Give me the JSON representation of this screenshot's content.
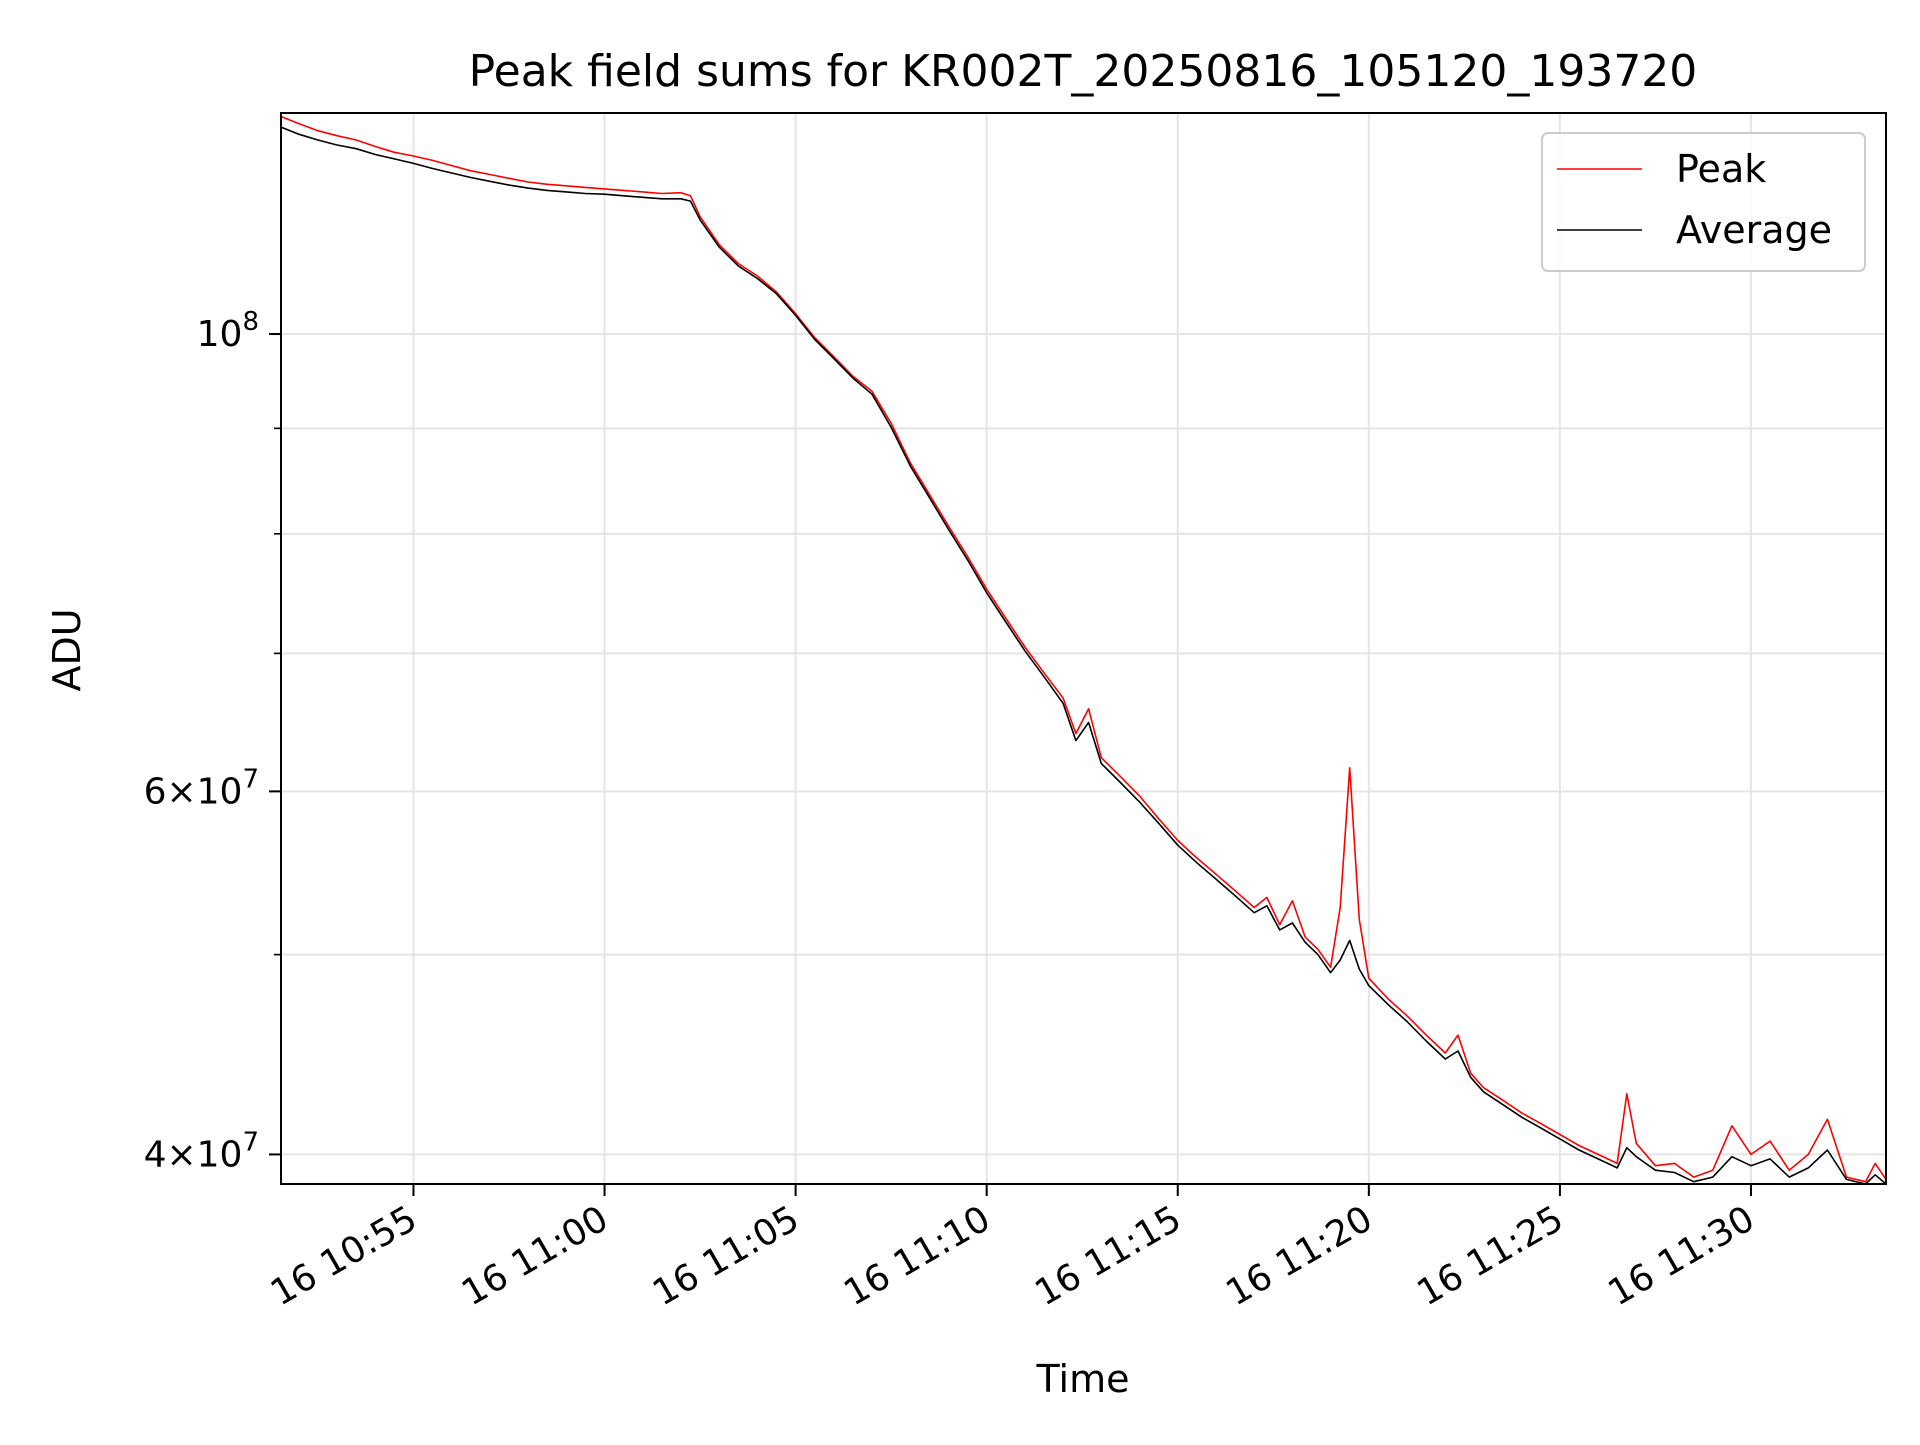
{
  "chart_data": {
    "type": "line",
    "title": "Peak field sums for KR002T_20250816_105120_193720",
    "xlabel": "Time",
    "ylabel": "ADU",
    "y_scale": "log",
    "ylim": [
      38700000,
      128000000
    ],
    "xlim": [
      "2025-08-16 10:51:32",
      "2025-08-16 11:33:32"
    ],
    "x_ticks": [
      {
        "time": "2025-08-16 10:55:00",
        "label": "16 10:55"
      },
      {
        "time": "2025-08-16 11:00:00",
        "label": "16 11:00"
      },
      {
        "time": "2025-08-16 11:05:00",
        "label": "16 11:05"
      },
      {
        "time": "2025-08-16 11:10:00",
        "label": "16 11:10"
      },
      {
        "time": "2025-08-16 11:15:00",
        "label": "16 11:15"
      },
      {
        "time": "2025-08-16 11:20:00",
        "label": "16 11:20"
      },
      {
        "time": "2025-08-16 11:25:00",
        "label": "16 11:25"
      },
      {
        "time": "2025-08-16 11:30:00",
        "label": "16 11:30"
      }
    ],
    "y_ticks": [
      {
        "value": 40000000,
        "mantissa": "4",
        "base": "10",
        "exp": "7"
      },
      {
        "value": 60000000,
        "mantissa": "6",
        "base": "10",
        "exp": "7"
      },
      {
        "value": 100000000,
        "mantissa": "",
        "base": "10",
        "exp": "8"
      }
    ],
    "y_minor_ticks": [
      50000000,
      70000000,
      80000000,
      90000000
    ],
    "grid": true,
    "legend_position": "upper-right",
    "series": [
      {
        "name": "Peak",
        "color": "#ff0000",
        "points": [
          [
            "2025-08-16 10:51:32",
            127500000
          ],
          [
            "2025-08-16 10:52:00",
            126500000
          ],
          [
            "2025-08-16 10:52:30",
            125500000
          ],
          [
            "2025-08-16 10:53:00",
            124800000
          ],
          [
            "2025-08-16 10:53:30",
            124200000
          ],
          [
            "2025-08-16 10:54:00",
            123300000
          ],
          [
            "2025-08-16 10:54:30",
            122500000
          ],
          [
            "2025-08-16 10:55:00",
            122000000
          ],
          [
            "2025-08-16 10:55:30",
            121400000
          ],
          [
            "2025-08-16 10:56:00",
            120700000
          ],
          [
            "2025-08-16 10:56:30",
            120000000
          ],
          [
            "2025-08-16 10:57:00",
            119500000
          ],
          [
            "2025-08-16 10:57:30",
            119000000
          ],
          [
            "2025-08-16 10:58:00",
            118500000
          ],
          [
            "2025-08-16 10:58:30",
            118200000
          ],
          [
            "2025-08-16 10:59:00",
            118000000
          ],
          [
            "2025-08-16 10:59:30",
            117800000
          ],
          [
            "2025-08-16 11:00:00",
            117600000
          ],
          [
            "2025-08-16 11:00:30",
            117400000
          ],
          [
            "2025-08-16 11:01:00",
            117200000
          ],
          [
            "2025-08-16 11:01:30",
            117000000
          ],
          [
            "2025-08-16 11:02:00",
            117100000
          ],
          [
            "2025-08-16 11:02:15",
            116700000
          ],
          [
            "2025-08-16 11:02:30",
            114000000
          ],
          [
            "2025-08-16 11:03:00",
            110500000
          ],
          [
            "2025-08-16 11:03:30",
            108200000
          ],
          [
            "2025-08-16 11:04:00",
            106700000
          ],
          [
            "2025-08-16 11:04:30",
            104800000
          ],
          [
            "2025-08-16 11:05:00",
            102300000
          ],
          [
            "2025-08-16 11:05:30",
            99600000
          ],
          [
            "2025-08-16 11:06:00",
            97500000
          ],
          [
            "2025-08-16 11:06:30",
            95400000
          ],
          [
            "2025-08-16 11:07:00",
            93800000
          ],
          [
            "2025-08-16 11:07:30",
            90500000
          ],
          [
            "2025-08-16 11:08:00",
            86600000
          ],
          [
            "2025-08-16 11:08:30",
            83600000
          ],
          [
            "2025-08-16 11:09:00",
            80700000
          ],
          [
            "2025-08-16 11:09:30",
            78000000
          ],
          [
            "2025-08-16 11:10:00",
            75200000
          ],
          [
            "2025-08-16 11:10:30",
            72800000
          ],
          [
            "2025-08-16 11:11:00",
            70500000
          ],
          [
            "2025-08-16 11:11:30",
            68500000
          ],
          [
            "2025-08-16 11:12:00",
            66600000
          ],
          [
            "2025-08-16 11:12:20",
            64000000
          ],
          [
            "2025-08-16 11:12:40",
            65800000
          ],
          [
            "2025-08-16 11:13:00",
            62300000
          ],
          [
            "2025-08-16 11:13:30",
            61000000
          ],
          [
            "2025-08-16 11:14:00",
            59700000
          ],
          [
            "2025-08-16 11:14:30",
            58200000
          ],
          [
            "2025-08-16 11:15:00",
            56800000
          ],
          [
            "2025-08-16 11:15:30",
            55700000
          ],
          [
            "2025-08-16 11:16:00",
            54700000
          ],
          [
            "2025-08-16 11:16:30",
            53700000
          ],
          [
            "2025-08-16 11:17:00",
            52700000
          ],
          [
            "2025-08-16 11:17:20",
            53300000
          ],
          [
            "2025-08-16 11:17:40",
            51700000
          ],
          [
            "2025-08-16 11:18:00",
            53100000
          ],
          [
            "2025-08-16 11:18:20",
            51000000
          ],
          [
            "2025-08-16 11:18:40",
            50300000
          ],
          [
            "2025-08-16 11:19:00",
            49300000
          ],
          [
            "2025-08-16 11:19:15",
            52700000
          ],
          [
            "2025-08-16 11:19:30",
            61600000
          ],
          [
            "2025-08-16 11:19:45",
            52000000
          ],
          [
            "2025-08-16 11:20:00",
            48700000
          ],
          [
            "2025-08-16 11:20:30",
            47600000
          ],
          [
            "2025-08-16 11:21:00",
            46700000
          ],
          [
            "2025-08-16 11:21:30",
            45700000
          ],
          [
            "2025-08-16 11:22:00",
            44800000
          ],
          [
            "2025-08-16 11:22:20",
            45700000
          ],
          [
            "2025-08-16 11:22:40",
            43800000
          ],
          [
            "2025-08-16 11:23:00",
            43100000
          ],
          [
            "2025-08-16 11:23:30",
            42500000
          ],
          [
            "2025-08-16 11:24:00",
            41900000
          ],
          [
            "2025-08-16 11:24:30",
            41400000
          ],
          [
            "2025-08-16 11:25:00",
            40900000
          ],
          [
            "2025-08-16 11:25:30",
            40400000
          ],
          [
            "2025-08-16 11:26:00",
            40000000
          ],
          [
            "2025-08-16 11:26:30",
            39600000
          ],
          [
            "2025-08-16 11:26:45",
            42800000
          ],
          [
            "2025-08-16 11:27:00",
            40500000
          ],
          [
            "2025-08-16 11:27:30",
            39500000
          ],
          [
            "2025-08-16 11:28:00",
            39600000
          ],
          [
            "2025-08-16 11:28:30",
            39000000
          ],
          [
            "2025-08-16 11:29:00",
            39300000
          ],
          [
            "2025-08-16 11:29:30",
            41300000
          ],
          [
            "2025-08-16 11:30:00",
            40000000
          ],
          [
            "2025-08-16 11:30:30",
            40600000
          ],
          [
            "2025-08-16 11:31:00",
            39300000
          ],
          [
            "2025-08-16 11:31:30",
            40000000
          ],
          [
            "2025-08-16 11:32:00",
            41600000
          ],
          [
            "2025-08-16 11:32:30",
            39000000
          ],
          [
            "2025-08-16 11:33:00",
            38800000
          ],
          [
            "2025-08-16 11:33:15",
            39600000
          ],
          [
            "2025-08-16 11:33:32",
            38900000
          ]
        ]
      },
      {
        "name": "Average",
        "color": "#000000",
        "points": [
          [
            "2025-08-16 10:51:32",
            126000000
          ],
          [
            "2025-08-16 10:52:00",
            125000000
          ],
          [
            "2025-08-16 10:52:30",
            124200000
          ],
          [
            "2025-08-16 10:53:00",
            123500000
          ],
          [
            "2025-08-16 10:53:30",
            123000000
          ],
          [
            "2025-08-16 10:54:00",
            122200000
          ],
          [
            "2025-08-16 10:54:30",
            121600000
          ],
          [
            "2025-08-16 10:55:00",
            121000000
          ],
          [
            "2025-08-16 10:55:30",
            120300000
          ],
          [
            "2025-08-16 10:56:00",
            119700000
          ],
          [
            "2025-08-16 10:56:30",
            119100000
          ],
          [
            "2025-08-16 10:57:00",
            118600000
          ],
          [
            "2025-08-16 10:57:30",
            118100000
          ],
          [
            "2025-08-16 10:58:00",
            117700000
          ],
          [
            "2025-08-16 10:58:30",
            117400000
          ],
          [
            "2025-08-16 10:59:00",
            117200000
          ],
          [
            "2025-08-16 10:59:30",
            117000000
          ],
          [
            "2025-08-16 11:00:00",
            116900000
          ],
          [
            "2025-08-16 11:00:30",
            116700000
          ],
          [
            "2025-08-16 11:01:00",
            116500000
          ],
          [
            "2025-08-16 11:01:30",
            116300000
          ],
          [
            "2025-08-16 11:02:00",
            116300000
          ],
          [
            "2025-08-16 11:02:15",
            116000000
          ],
          [
            "2025-08-16 11:02:30",
            113600000
          ],
          [
            "2025-08-16 11:03:00",
            110200000
          ],
          [
            "2025-08-16 11:03:30",
            107900000
          ],
          [
            "2025-08-16 11:04:00",
            106400000
          ],
          [
            "2025-08-16 11:04:30",
            104600000
          ],
          [
            "2025-08-16 11:05:00",
            102100000
          ],
          [
            "2025-08-16 11:05:30",
            99400000
          ],
          [
            "2025-08-16 11:06:00",
            97300000
          ],
          [
            "2025-08-16 11:06:30",
            95200000
          ],
          [
            "2025-08-16 11:07:00",
            93500000
          ],
          [
            "2025-08-16 11:07:30",
            90100000
          ],
          [
            "2025-08-16 11:08:00",
            86300000
          ],
          [
            "2025-08-16 11:08:30",
            83300000
          ],
          [
            "2025-08-16 11:09:00",
            80400000
          ],
          [
            "2025-08-16 11:09:30",
            77700000
          ],
          [
            "2025-08-16 11:10:00",
            74900000
          ],
          [
            "2025-08-16 11:10:30",
            72500000
          ],
          [
            "2025-08-16 11:11:00",
            70200000
          ],
          [
            "2025-08-16 11:11:30",
            68200000
          ],
          [
            "2025-08-16 11:12:00",
            66200000
          ],
          [
            "2025-08-16 11:12:20",
            63500000
          ],
          [
            "2025-08-16 11:12:40",
            64800000
          ],
          [
            "2025-08-16 11:13:00",
            61900000
          ],
          [
            "2025-08-16 11:13:30",
            60600000
          ],
          [
            "2025-08-16 11:14:00",
            59300000
          ],
          [
            "2025-08-16 11:14:30",
            57900000
          ],
          [
            "2025-08-16 11:15:00",
            56500000
          ],
          [
            "2025-08-16 11:15:30",
            55400000
          ],
          [
            "2025-08-16 11:16:00",
            54400000
          ],
          [
            "2025-08-16 11:16:30",
            53400000
          ],
          [
            "2025-08-16 11:17:00",
            52400000
          ],
          [
            "2025-08-16 11:17:20",
            52800000
          ],
          [
            "2025-08-16 11:17:40",
            51400000
          ],
          [
            "2025-08-16 11:18:00",
            51800000
          ],
          [
            "2025-08-16 11:18:20",
            50700000
          ],
          [
            "2025-08-16 11:18:40",
            50000000
          ],
          [
            "2025-08-16 11:19:00",
            49000000
          ],
          [
            "2025-08-16 11:19:15",
            49700000
          ],
          [
            "2025-08-16 11:19:30",
            50800000
          ],
          [
            "2025-08-16 11:19:45",
            49200000
          ],
          [
            "2025-08-16 11:20:00",
            48300000
          ],
          [
            "2025-08-16 11:20:30",
            47300000
          ],
          [
            "2025-08-16 11:21:00",
            46400000
          ],
          [
            "2025-08-16 11:21:30",
            45400000
          ],
          [
            "2025-08-16 11:22:00",
            44500000
          ],
          [
            "2025-08-16 11:22:20",
            44900000
          ],
          [
            "2025-08-16 11:22:40",
            43600000
          ],
          [
            "2025-08-16 11:23:00",
            42900000
          ],
          [
            "2025-08-16 11:23:30",
            42300000
          ],
          [
            "2025-08-16 11:24:00",
            41700000
          ],
          [
            "2025-08-16 11:24:30",
            41200000
          ],
          [
            "2025-08-16 11:25:00",
            40700000
          ],
          [
            "2025-08-16 11:25:30",
            40200000
          ],
          [
            "2025-08-16 11:26:00",
            39800000
          ],
          [
            "2025-08-16 11:26:30",
            39400000
          ],
          [
            "2025-08-16 11:26:45",
            40300000
          ],
          [
            "2025-08-16 11:27:00",
            39900000
          ],
          [
            "2025-08-16 11:27:30",
            39300000
          ],
          [
            "2025-08-16 11:28:00",
            39200000
          ],
          [
            "2025-08-16 11:28:30",
            38800000
          ],
          [
            "2025-08-16 11:29:00",
            39000000
          ],
          [
            "2025-08-16 11:29:30",
            39900000
          ],
          [
            "2025-08-16 11:30:00",
            39500000
          ],
          [
            "2025-08-16 11:30:30",
            39800000
          ],
          [
            "2025-08-16 11:31:00",
            39000000
          ],
          [
            "2025-08-16 11:31:30",
            39400000
          ],
          [
            "2025-08-16 11:32:00",
            40200000
          ],
          [
            "2025-08-16 11:32:30",
            38900000
          ],
          [
            "2025-08-16 11:33:00",
            38700000
          ],
          [
            "2025-08-16 11:33:15",
            39100000
          ],
          [
            "2025-08-16 11:33:32",
            38700000
          ]
        ]
      }
    ]
  }
}
